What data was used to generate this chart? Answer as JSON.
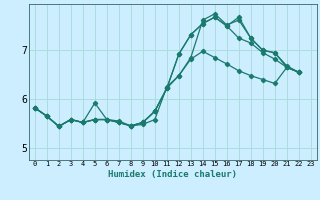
{
  "title": "",
  "xlabel": "Humidex (Indice chaleur)",
  "bg_color": "#cceeff",
  "grid_color": "#aadddd",
  "line_color": "#1a7a6e",
  "spine_color": "#336666",
  "xlim": [
    -0.5,
    23.5
  ],
  "ylim": [
    4.75,
    7.95
  ],
  "yticks": [
    5,
    6,
    7
  ],
  "xticks": [
    0,
    1,
    2,
    3,
    4,
    5,
    6,
    7,
    8,
    9,
    10,
    11,
    12,
    13,
    14,
    15,
    16,
    17,
    18,
    19,
    20,
    21,
    22,
    23
  ],
  "line1": {
    "x": [
      0,
      1,
      2,
      3,
      4,
      5,
      6,
      7,
      8,
      9,
      10,
      11,
      12,
      13,
      14,
      15,
      16,
      17,
      18,
      19,
      20,
      21,
      22,
      23
    ],
    "y": [
      5.82,
      5.65,
      5.44,
      5.58,
      5.52,
      5.92,
      5.58,
      5.55,
      5.45,
      5.48,
      5.58,
      6.25,
      6.48,
      6.85,
      7.62,
      7.75,
      7.52,
      7.62,
      7.25,
      7.0,
      6.95,
      6.68,
      6.55,
      null
    ]
  },
  "line2": {
    "x": [
      0,
      1,
      2,
      3,
      4,
      5,
      6,
      7,
      8,
      9,
      10,
      11,
      12,
      13,
      14,
      15,
      16,
      17,
      18,
      19,
      20,
      21,
      22,
      23
    ],
    "y": [
      5.82,
      5.65,
      5.44,
      5.58,
      5.52,
      5.58,
      5.58,
      5.52,
      5.45,
      5.52,
      5.75,
      6.22,
      6.92,
      7.32,
      7.55,
      7.68,
      7.5,
      7.68,
      7.25,
      7.0,
      6.95,
      6.65,
      6.55,
      null
    ]
  },
  "line3": {
    "x": [
      0,
      1,
      2,
      3,
      4,
      5,
      6,
      7,
      8,
      9,
      10,
      11,
      12,
      13,
      14,
      15,
      16,
      17,
      18,
      19,
      20,
      21,
      22,
      23
    ],
    "y": [
      5.82,
      5.65,
      5.44,
      5.58,
      5.52,
      5.58,
      5.58,
      5.52,
      5.45,
      5.52,
      5.75,
      6.22,
      6.92,
      7.32,
      7.55,
      7.68,
      7.5,
      7.25,
      7.15,
      6.95,
      6.82,
      6.65,
      6.55,
      null
    ]
  },
  "line4": {
    "x": [
      0,
      1,
      2,
      3,
      4,
      5,
      6,
      7,
      8,
      9,
      10,
      11,
      12,
      13,
      14,
      15,
      16,
      17,
      18,
      19,
      20,
      21,
      22,
      23
    ],
    "y": [
      5.82,
      5.65,
      5.44,
      5.58,
      5.52,
      5.58,
      5.58,
      5.52,
      5.45,
      5.52,
      5.75,
      6.22,
      6.48,
      6.82,
      6.98,
      6.85,
      6.72,
      6.58,
      6.48,
      6.4,
      6.32,
      6.65,
      6.55,
      null
    ]
  }
}
